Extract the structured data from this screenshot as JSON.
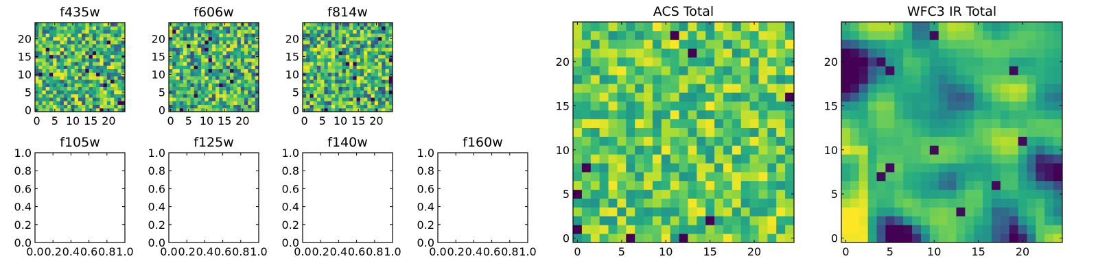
{
  "figure": {
    "colormap": [
      "#440154",
      "#3b528b",
      "#21918c",
      "#27ad81",
      "#5ec962",
      "#addc30",
      "#fde725"
    ]
  },
  "chart_data": [
    {
      "id": "f435w",
      "type": "heatmap",
      "title": "f435w",
      "xlim": [
        -0.5,
        24.5
      ],
      "ylim": [
        -0.5,
        24.5
      ],
      "xticks": [
        0,
        5,
        10,
        15,
        20
      ],
      "yticks": [
        0,
        5,
        10,
        15,
        20
      ],
      "shape": [
        25,
        25
      ],
      "seed": 435,
      "pattern": "noise"
    },
    {
      "id": "f606w",
      "type": "heatmap",
      "title": "f606w",
      "xlim": [
        -0.5,
        24.5
      ],
      "ylim": [
        -0.5,
        24.5
      ],
      "xticks": [
        0,
        5,
        10,
        15,
        20
      ],
      "yticks": [
        0,
        5,
        10,
        15,
        20
      ],
      "shape": [
        25,
        25
      ],
      "seed": 606,
      "pattern": "noise"
    },
    {
      "id": "f814w",
      "type": "heatmap",
      "title": "f814w",
      "xlim": [
        -0.5,
        24.5
      ],
      "ylim": [
        -0.5,
        24.5
      ],
      "xticks": [
        0,
        5,
        10,
        15,
        20
      ],
      "yticks": [
        0,
        5,
        10,
        15,
        20
      ],
      "shape": [
        25,
        25
      ],
      "seed": 814,
      "pattern": "noise"
    },
    {
      "id": "f105w",
      "type": "empty",
      "title": "f105w",
      "xlim": [
        0,
        1
      ],
      "ylim": [
        0,
        1
      ],
      "xticks": [
        "0.0",
        "0.2",
        "0.4",
        "0.6",
        "0.8",
        "1.0"
      ],
      "yticks": [
        "0.0",
        "0.2",
        "0.4",
        "0.6",
        "0.8",
        "1.0"
      ]
    },
    {
      "id": "f125w",
      "type": "empty",
      "title": "f125w",
      "xlim": [
        0,
        1
      ],
      "ylim": [
        0,
        1
      ],
      "xticks": [
        "0.0",
        "0.2",
        "0.4",
        "0.6",
        "0.8",
        "1.0"
      ],
      "yticks": [
        "0.0",
        "0.2",
        "0.4",
        "0.6",
        "0.8",
        "1.0"
      ]
    },
    {
      "id": "f140w",
      "type": "empty",
      "title": "f140w",
      "xlim": [
        0,
        1
      ],
      "ylim": [
        0,
        1
      ],
      "xticks": [
        "0.0",
        "0.2",
        "0.4",
        "0.6",
        "0.8",
        "1.0"
      ],
      "yticks": [
        "0.0",
        "0.2",
        "0.4",
        "0.6",
        "0.8",
        "1.0"
      ]
    },
    {
      "id": "f160w",
      "type": "empty",
      "title": "f160w",
      "xlim": [
        0,
        1
      ],
      "ylim": [
        0,
        1
      ],
      "xticks": [
        "0.0",
        "0.2",
        "0.4",
        "0.6",
        "0.8",
        "1.0"
      ],
      "yticks": [
        "0.0",
        "0.2",
        "0.4",
        "0.6",
        "0.8",
        "1.0"
      ]
    },
    {
      "id": "acs_total",
      "type": "heatmap",
      "title": "ACS Total",
      "xlim": [
        -0.5,
        24.5
      ],
      "ylim": [
        -0.5,
        24.5
      ],
      "xticks": [
        0,
        5,
        10,
        15,
        20
      ],
      "yticks": [
        0,
        5,
        10,
        15,
        20
      ],
      "shape": [
        25,
        25
      ],
      "seed": 2017,
      "pattern": "bright-noise"
    },
    {
      "id": "wfc3_ir_total",
      "type": "heatmap",
      "title": "WFC3 IR Total",
      "xlim": [
        -0.5,
        24.5
      ],
      "ylim": [
        -0.5,
        24.5
      ],
      "xticks": [
        0,
        5,
        10,
        15,
        20
      ],
      "yticks": [
        0,
        5,
        10,
        15,
        20
      ],
      "shape": [
        25,
        25
      ],
      "seed": 3141,
      "pattern": "smooth"
    }
  ]
}
